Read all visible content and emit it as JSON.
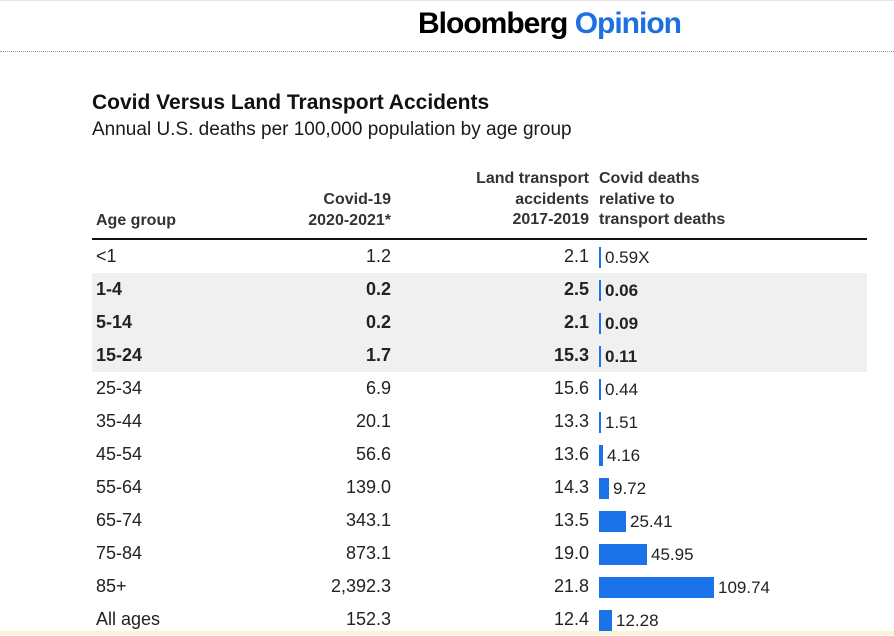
{
  "header": {
    "brand_primary": "Bloomberg",
    "brand_secondary": "Opinion",
    "brand_color_primary": "#000000",
    "brand_color_secondary": "#1e6fe0"
  },
  "chart_data": {
    "type": "table",
    "title": "Covid Versus Land Transport Accidents",
    "subtitle": "Annual U.S. deaths per 100,000 population by age group",
    "columns": [
      {
        "key": "age",
        "label_lines": [
          "Age group"
        ]
      },
      {
        "key": "covid",
        "label_lines": [
          "Covid-19",
          "2020-2021*"
        ]
      },
      {
        "key": "land",
        "label_lines": [
          "Land transport",
          "accidents",
          "2017-2019"
        ]
      },
      {
        "key": "ratio",
        "label_lines": [
          "Covid deaths",
          "relative to",
          "transport deaths"
        ]
      }
    ],
    "bar_color": "#1a73e8",
    "highlight_color": "#f0f0f0",
    "rows": [
      {
        "age": "<1",
        "covid": "1.2",
        "land": "2.1",
        "ratio": 0.59,
        "ratio_label": "0.59X",
        "highlight": false
      },
      {
        "age": "1-4",
        "covid": "0.2",
        "land": "2.5",
        "ratio": 0.06,
        "ratio_label": "0.06",
        "highlight": true
      },
      {
        "age": "5-14",
        "covid": "0.2",
        "land": "2.1",
        "ratio": 0.09,
        "ratio_label": "0.09",
        "highlight": true
      },
      {
        "age": "15-24",
        "covid": "1.7",
        "land": "15.3",
        "ratio": 0.11,
        "ratio_label": "0.11",
        "highlight": true
      },
      {
        "age": "25-34",
        "covid": "6.9",
        "land": "15.6",
        "ratio": 0.44,
        "ratio_label": "0.44",
        "highlight": false
      },
      {
        "age": "35-44",
        "covid": "20.1",
        "land": "13.3",
        "ratio": 1.51,
        "ratio_label": "1.51",
        "highlight": false
      },
      {
        "age": "45-54",
        "covid": "56.6",
        "land": "13.6",
        "ratio": 4.16,
        "ratio_label": "4.16",
        "highlight": false
      },
      {
        "age": "55-64",
        "covid": "139.0",
        "land": "14.3",
        "ratio": 9.72,
        "ratio_label": "9.72",
        "highlight": false
      },
      {
        "age": "65-74",
        "covid": "343.1",
        "land": "13.5",
        "ratio": 25.41,
        "ratio_label": "25.41",
        "highlight": false
      },
      {
        "age": "75-84",
        "covid": "873.1",
        "land": "19.0",
        "ratio": 45.95,
        "ratio_label": "45.95",
        "highlight": false
      },
      {
        "age": "85+",
        "covid": "2,392.3",
        "land": "21.8",
        "ratio": 109.74,
        "ratio_label": "109.74",
        "highlight": false
      },
      {
        "age": "All ages",
        "covid": "152.3",
        "land": "12.4",
        "ratio": 12.28,
        "ratio_label": "12.28",
        "highlight": false
      }
    ]
  }
}
